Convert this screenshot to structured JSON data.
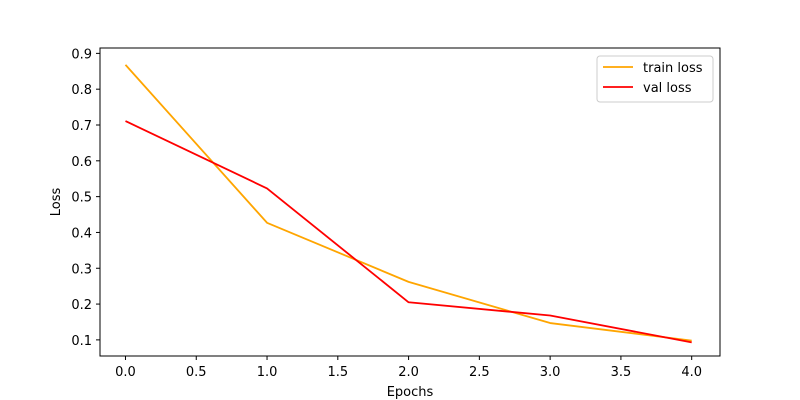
{
  "chart_data": {
    "type": "line",
    "title": "",
    "xlabel": "Epochs",
    "ylabel": "Loss",
    "xlim": [
      -0.18,
      4.2
    ],
    "ylim": [
      0.055,
      0.915
    ],
    "xticks": [
      0.0,
      0.5,
      1.0,
      1.5,
      2.0,
      2.5,
      3.0,
      3.5,
      4.0
    ],
    "xtick_labels": [
      "0.0",
      "0.5",
      "1.0",
      "1.5",
      "2.0",
      "2.5",
      "3.0",
      "3.5",
      "4.0"
    ],
    "yticks": [
      0.1,
      0.2,
      0.3,
      0.4,
      0.5,
      0.6,
      0.7,
      0.8,
      0.9
    ],
    "ytick_labels": [
      "0.1",
      "0.2",
      "0.3",
      "0.4",
      "0.5",
      "0.6",
      "0.7",
      "0.8",
      "0.9"
    ],
    "grid": false,
    "legend_position": "top-right",
    "x": [
      0,
      1,
      2,
      3,
      4
    ],
    "series": [
      {
        "name": "train loss",
        "color": "#FFA500",
        "values": [
          0.868,
          0.427,
          0.262,
          0.147,
          0.098
        ]
      },
      {
        "name": "val loss",
        "color": "#FF0000",
        "values": [
          0.711,
          0.523,
          0.205,
          0.168,
          0.093
        ]
      }
    ]
  }
}
